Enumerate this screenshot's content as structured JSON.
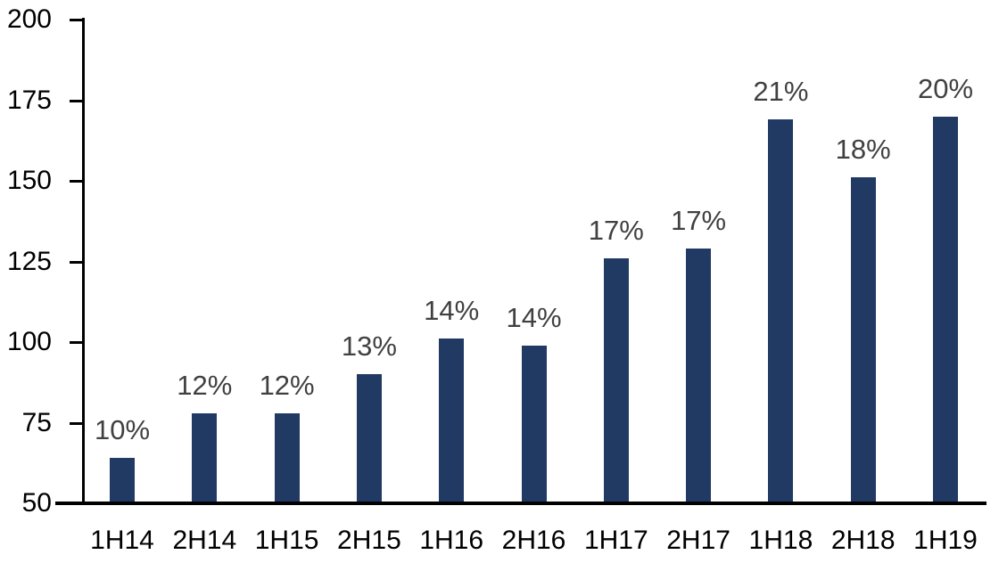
{
  "chart_data": {
    "type": "bar",
    "title": "",
    "xlabel": "",
    "ylabel": "",
    "categories": [
      "1H14",
      "2H14",
      "1H15",
      "2H15",
      "1H16",
      "2H16",
      "1H17",
      "2H17",
      "1H18",
      "2H18",
      "1H19"
    ],
    "values": [
      64,
      78,
      78,
      90,
      101,
      99,
      126,
      129,
      169,
      151,
      170
    ],
    "bar_labels": [
      "10%",
      "12%",
      "12%",
      "13%",
      "14%",
      "14%",
      "17%",
      "17%",
      "21%",
      "18%",
      "20%"
    ],
    "yticks": [
      50,
      75,
      100,
      125,
      150,
      175,
      200
    ],
    "ylim": [
      50,
      200
    ],
    "grid": "off",
    "legend_position": "none",
    "colors": {
      "bar": "#203A64",
      "bar_label": "#404040",
      "axis": "#000000",
      "axis_label": "#000000",
      "background": "#FFFFFF"
    }
  }
}
